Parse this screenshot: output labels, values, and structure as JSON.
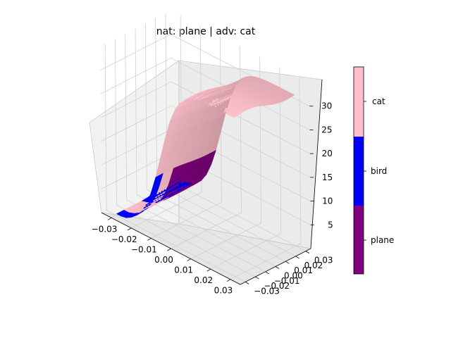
{
  "chart_data": {
    "type": "surface3d",
    "title": "nat: plane | adv: cat",
    "x_ticks": [
      "−0.03",
      "−0.02",
      "−0.01",
      "0.00",
      "0.01",
      "0.02",
      "0.03"
    ],
    "y_ticks": [
      "−0.03",
      "−0.02",
      "−0.01",
      "0.00",
      "0.01",
      "0.02",
      "0.03"
    ],
    "z_ticks": [
      "5",
      "10",
      "15",
      "20",
      "25",
      "30"
    ],
    "xlim": [
      -0.035,
      0.035
    ],
    "ylim": [
      -0.035,
      0.035
    ],
    "zlim": [
      0,
      35
    ],
    "colorbar": {
      "labels": [
        "plane",
        "bird",
        "cat"
      ],
      "colors": [
        "#800080",
        "#0000ff",
        "#ffc0cb"
      ]
    }
  }
}
